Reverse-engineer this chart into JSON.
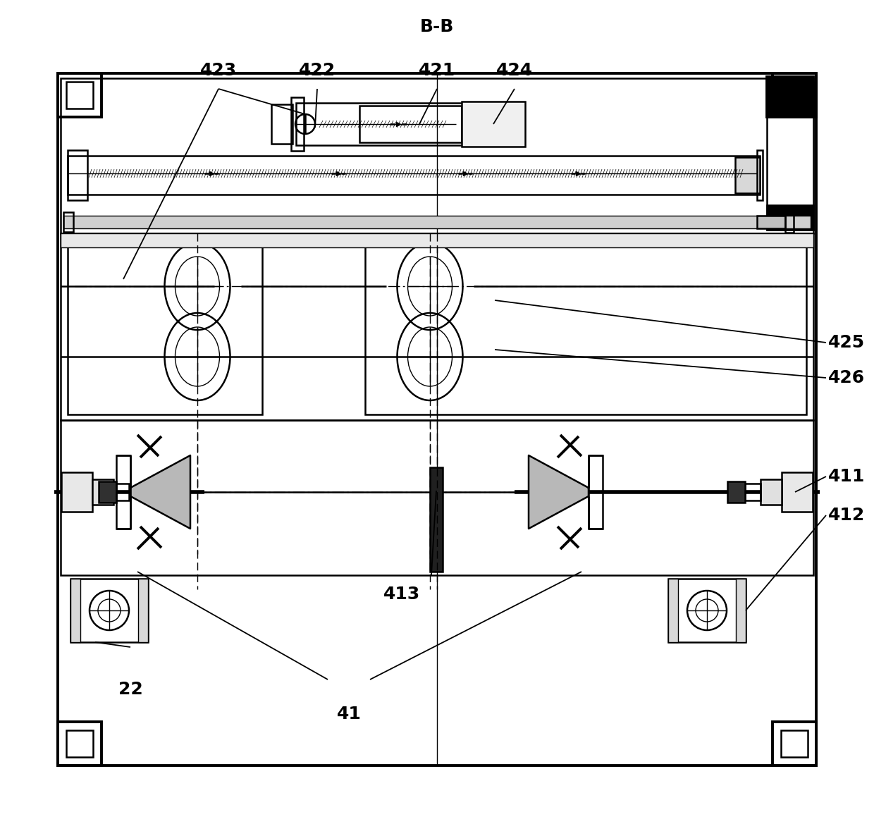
{
  "title": "B-B",
  "title_fontsize": 18,
  "bg_color": "#ffffff",
  "line_color": "#000000",
  "figsize": [
    12.4,
    11.86
  ],
  "dpi": 100
}
